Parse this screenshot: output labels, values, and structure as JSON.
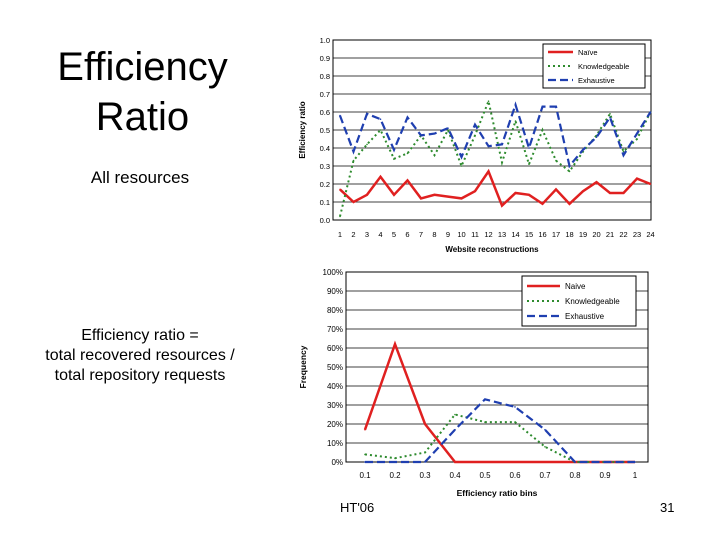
{
  "slide": {
    "title_line1": "Efficiency",
    "title_line2": "Ratio",
    "subtitle": "All resources",
    "definition_line1": "Efficiency ratio =",
    "definition_line2": "total recovered resources /",
    "definition_line3": "total repository requests",
    "footer": "HT'06",
    "page_number": "31"
  },
  "colors": {
    "naive": "#e02020",
    "knowledgeable": "#2e8b2e",
    "exhaustive": "#1f3fb0"
  },
  "chart_data": [
    {
      "type": "line",
      "xlabel": "Website reconstructions",
      "ylabel": "Efficiency ratio",
      "x": [
        1,
        2,
        3,
        4,
        5,
        6,
        7,
        8,
        9,
        10,
        11,
        12,
        13,
        14,
        15,
        16,
        17,
        18,
        19,
        20,
        21,
        22,
        23,
        24
      ],
      "ylim": [
        0,
        1
      ],
      "yticks": [
        "0.0",
        "0.1",
        "0.2",
        "0.3",
        "0.4",
        "0.5",
        "0.6",
        "0.7",
        "0.8",
        "0.9",
        "1.0"
      ],
      "legend_position": "top-right",
      "series": [
        {
          "name": "Naïve",
          "style": "solid",
          "values": [
            0.17,
            0.1,
            0.14,
            0.24,
            0.14,
            0.22,
            0.12,
            0.14,
            0.13,
            0.12,
            0.16,
            0.27,
            0.08,
            0.15,
            0.14,
            0.09,
            0.17,
            0.09,
            0.16,
            0.21,
            0.15,
            0.15,
            0.23,
            0.2
          ]
        },
        {
          "name": "Knowledgeable",
          "style": "dotted",
          "values": [
            0.02,
            0.33,
            0.42,
            0.5,
            0.34,
            0.37,
            0.47,
            0.36,
            0.5,
            0.3,
            0.47,
            0.66,
            0.32,
            0.55,
            0.31,
            0.5,
            0.33,
            0.27,
            0.38,
            0.47,
            0.59,
            0.38,
            0.45,
            0.6
          ]
        },
        {
          "name": "Exhaustive",
          "style": "dashed",
          "values": [
            0.58,
            0.38,
            0.59,
            0.56,
            0.39,
            0.57,
            0.47,
            0.48,
            0.51,
            0.35,
            0.53,
            0.41,
            0.42,
            0.64,
            0.4,
            0.63,
            0.63,
            0.3,
            0.39,
            0.46,
            0.57,
            0.36,
            0.48,
            0.6
          ]
        }
      ]
    },
    {
      "type": "line",
      "xlabel": "Efficiency ratio bins",
      "ylabel": "Frequency",
      "x": [
        0.1,
        0.2,
        0.3,
        0.4,
        0.5,
        0.6,
        0.7,
        0.8,
        0.9,
        1
      ],
      "xtick_labels": [
        "0.1",
        "0.2",
        "0.3",
        "0.4",
        "0.5",
        "0.6",
        "0.7",
        "0.8",
        "0.9",
        "1"
      ],
      "ylim": [
        0,
        100
      ],
      "yticks": [
        "0%",
        "10%",
        "20%",
        "30%",
        "40%",
        "50%",
        "60%",
        "70%",
        "80%",
        "90%",
        "100%"
      ],
      "legend_position": "top-right",
      "series": [
        {
          "name": "Naive",
          "style": "solid",
          "values": [
            17,
            62,
            20,
            0,
            0,
            0,
            0,
            0,
            0,
            0
          ]
        },
        {
          "name": "Knowledgeable",
          "style": "dotted",
          "values": [
            4,
            2,
            5,
            25,
            21,
            21,
            8,
            0,
            0,
            0
          ]
        },
        {
          "name": "Exhaustive",
          "style": "dashed",
          "values": [
            0,
            0,
            0,
            17,
            33,
            29,
            17,
            0,
            0,
            0
          ]
        }
      ]
    }
  ]
}
